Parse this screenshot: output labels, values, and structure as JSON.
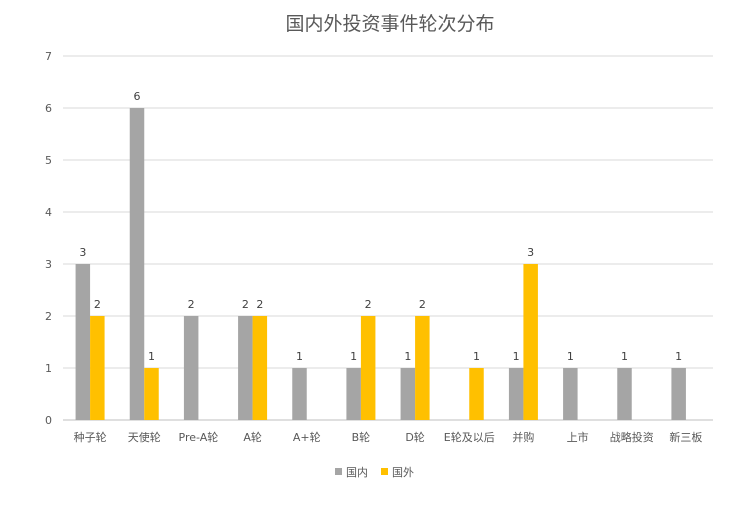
{
  "chart_data": {
    "type": "bar",
    "title": "国内外投资事件轮次分布",
    "xlabel": "",
    "ylabel": "",
    "categories": [
      "种子轮",
      "天使轮",
      "Pre-A轮",
      "A轮",
      "A+轮",
      "B轮",
      "D轮",
      "E轮及以后",
      "并购",
      "上市",
      "战略投资",
      "新三板"
    ],
    "series": [
      {
        "name": "国内",
        "color": "#a5a5a5",
        "values": [
          3,
          6,
          2,
          2,
          1,
          1,
          1,
          null,
          1,
          1,
          1,
          1
        ]
      },
      {
        "name": "国外",
        "color": "#ffc000",
        "values": [
          2,
          1,
          null,
          2,
          null,
          2,
          2,
          1,
          3,
          null,
          null,
          null
        ]
      }
    ],
    "ylim": [
      0,
      7
    ],
    "yticks": [
      "0",
      "1",
      "2",
      "3",
      "4",
      "5",
      "6",
      "7"
    ],
    "grid": true,
    "legend": "bottom"
  }
}
